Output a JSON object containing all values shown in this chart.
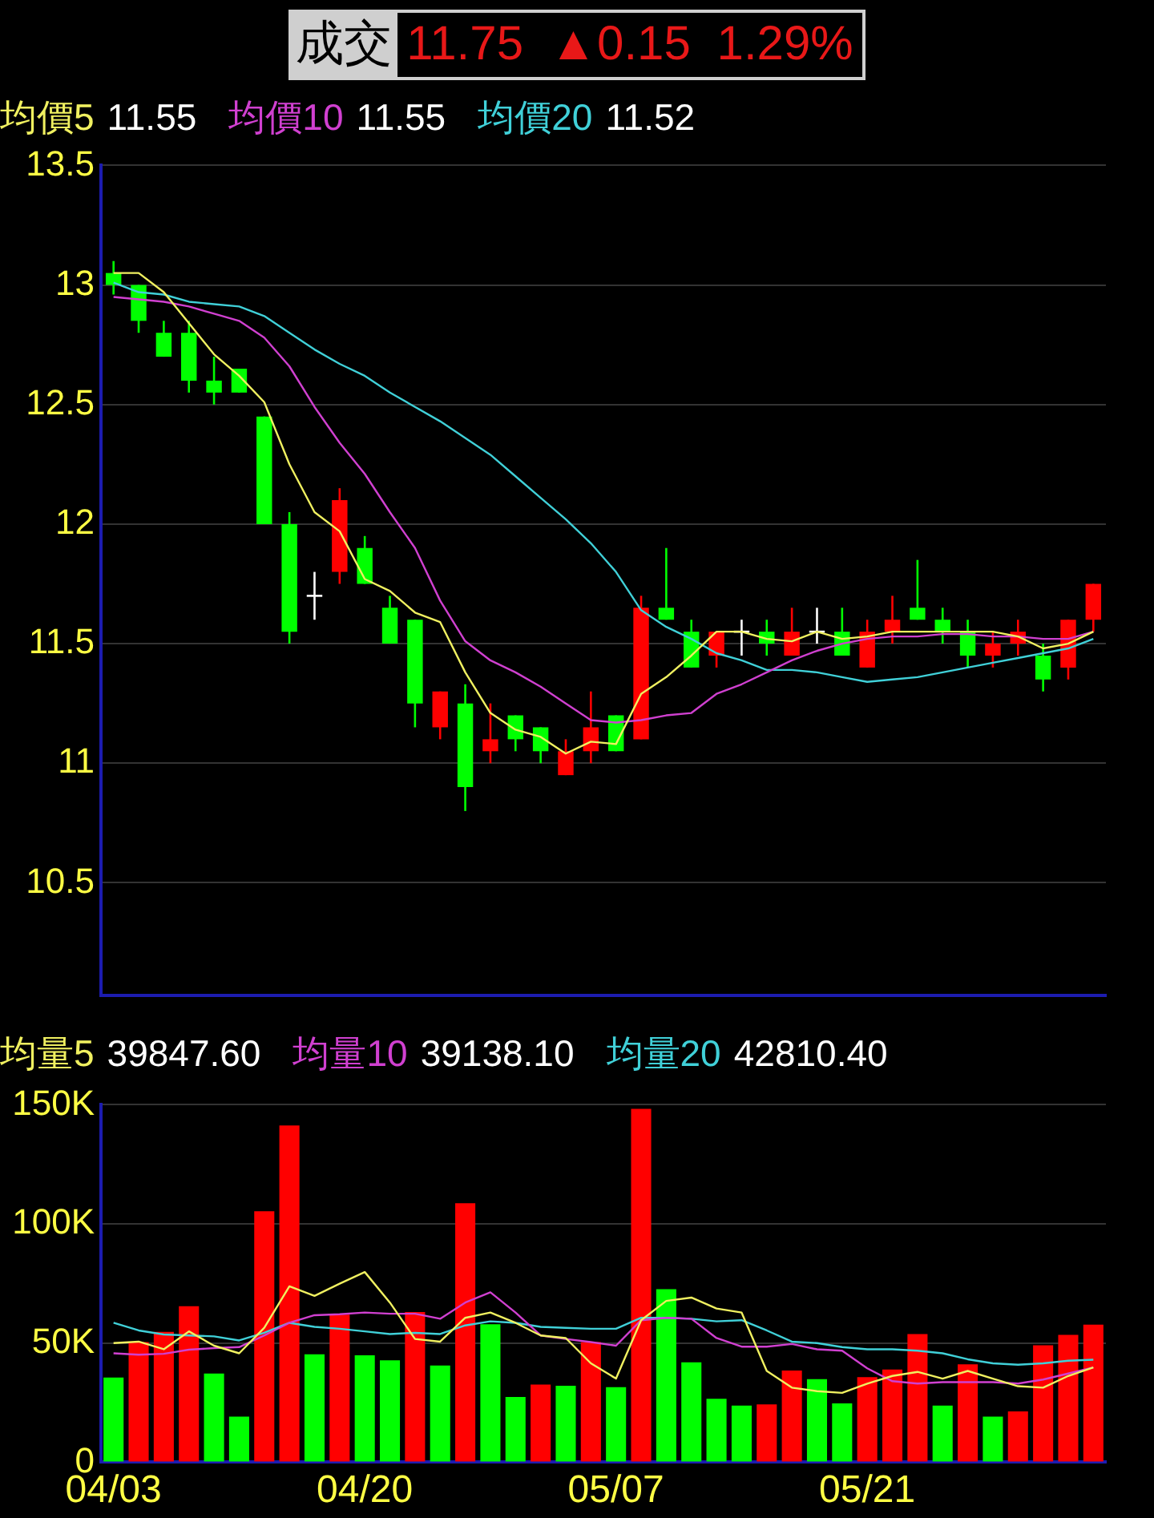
{
  "chart_data": [
    {
      "type": "candlestick",
      "title": "成交",
      "subtitle": "11.75 ▲0.15 1.29%",
      "ohlc": [
        [
          13.05,
          13.1,
          12.96,
          13.0
        ],
        [
          13.0,
          13.0,
          12.8,
          12.85
        ],
        [
          12.8,
          12.85,
          12.7,
          12.7
        ],
        [
          12.8,
          12.85,
          12.55,
          12.6
        ],
        [
          12.6,
          12.7,
          12.5,
          12.55
        ],
        [
          12.65,
          12.65,
          12.55,
          12.55
        ],
        [
          12.45,
          12.45,
          12.0,
          12.0
        ],
        [
          12.0,
          12.05,
          11.5,
          11.55
        ],
        [
          11.7,
          11.8,
          11.6,
          11.7
        ],
        [
          11.8,
          12.15,
          11.75,
          12.1
        ],
        [
          11.9,
          11.95,
          11.75,
          11.75
        ],
        [
          11.65,
          11.7,
          11.5,
          11.5
        ],
        [
          11.6,
          11.6,
          11.15,
          11.25
        ],
        [
          11.15,
          11.3,
          11.1,
          11.3
        ],
        [
          11.25,
          11.33,
          10.8,
          10.9
        ],
        [
          11.05,
          11.25,
          11.0,
          11.1
        ],
        [
          11.2,
          11.2,
          11.05,
          11.1
        ],
        [
          11.15,
          11.15,
          11.0,
          11.05
        ],
        [
          10.95,
          11.1,
          10.95,
          11.05
        ],
        [
          11.05,
          11.3,
          11.0,
          11.15
        ],
        [
          11.2,
          11.2,
          11.05,
          11.05
        ],
        [
          11.1,
          11.7,
          11.1,
          11.65
        ],
        [
          11.65,
          11.9,
          11.6,
          11.6
        ],
        [
          11.55,
          11.6,
          11.4,
          11.4
        ],
        [
          11.45,
          11.55,
          11.4,
          11.55
        ],
        [
          11.55,
          11.6,
          11.45,
          11.55
        ],
        [
          11.55,
          11.6,
          11.45,
          11.5
        ],
        [
          11.45,
          11.65,
          11.45,
          11.55
        ],
        [
          11.55,
          11.65,
          11.5,
          11.55
        ],
        [
          11.55,
          11.65,
          11.45,
          11.45
        ],
        [
          11.4,
          11.6,
          11.4,
          11.55
        ],
        [
          11.55,
          11.7,
          11.5,
          11.6
        ],
        [
          11.65,
          11.85,
          11.6,
          11.6
        ],
        [
          11.6,
          11.65,
          11.5,
          11.55
        ],
        [
          11.55,
          11.6,
          11.4,
          11.45
        ],
        [
          11.45,
          11.55,
          11.4,
          11.5
        ],
        [
          11.5,
          11.6,
          11.45,
          11.55
        ],
        [
          11.45,
          11.5,
          11.3,
          11.35
        ],
        [
          11.4,
          11.6,
          11.35,
          11.6
        ],
        [
          11.6,
          11.75,
          11.55,
          11.75
        ]
      ],
      "colors": [
        "#00ff00",
        "#00ff00",
        "#00ff00",
        "#00ff00",
        "#00ff00",
        "#00ff00",
        "#00ff00",
        "#00ff00",
        "#ffffff",
        "#ff0000",
        "#00ff00",
        "#00ff00",
        "#00ff00",
        "#ff0000",
        "#00ff00",
        "#ff0000",
        "#00ff00",
        "#00ff00",
        "#ff0000",
        "#ff0000",
        "#00ff00",
        "#ff0000",
        "#00ff00",
        "#00ff00",
        "#ff0000",
        "#ffffff",
        "#00ff00",
        "#ff0000",
        "#ffffff",
        "#00ff00",
        "#ff0000",
        "#ff0000",
        "#00ff00",
        "#00ff00",
        "#00ff00",
        "#ff0000",
        "#ff0000",
        "#00ff00",
        "#ff0000",
        "#ff0000"
      ],
      "series": [
        {
          "type": "line",
          "name": "均價5",
          "color": "#f0f060",
          "values": [
            13.05,
            13.05,
            12.97,
            12.84,
            12.71,
            12.62,
            12.51,
            12.25,
            12.05,
            11.97,
            11.77,
            11.72,
            11.63,
            11.59,
            11.38,
            11.21,
            11.14,
            11.11,
            11.04,
            11.09,
            11.08,
            11.29,
            11.36,
            11.45,
            11.55,
            11.55,
            11.52,
            11.51,
            11.55,
            11.52,
            11.53,
            11.55,
            11.55,
            11.55,
            11.55,
            11.55,
            11.53,
            11.48,
            11.5,
            11.55
          ]
        },
        {
          "type": "line",
          "name": "均價10",
          "color": "#d040d0",
          "values": [
            12.95,
            12.94,
            12.93,
            12.91,
            12.88,
            12.85,
            12.78,
            12.66,
            12.49,
            12.34,
            12.21,
            12.05,
            11.9,
            11.68,
            11.51,
            11.43,
            11.38,
            11.32,
            11.25,
            11.18,
            11.17,
            11.18,
            11.2,
            11.21,
            11.29,
            11.33,
            11.38,
            11.43,
            11.47,
            11.5,
            11.52,
            11.53,
            11.53,
            11.54,
            11.54,
            11.53,
            11.53,
            11.52,
            11.52,
            11.55
          ]
        },
        {
          "type": "line",
          "name": "均價20",
          "color": "#40d0d8",
          "values": [
            13.01,
            12.97,
            12.96,
            12.93,
            12.92,
            12.91,
            12.87,
            12.8,
            12.73,
            12.67,
            12.62,
            12.55,
            12.49,
            12.43,
            12.36,
            12.29,
            12.2,
            12.11,
            12.02,
            11.92,
            11.8,
            11.64,
            11.57,
            11.52,
            11.46,
            11.43,
            11.39,
            11.39,
            11.38,
            11.36,
            11.34,
            11.35,
            11.36,
            11.38,
            11.4,
            11.42,
            11.44,
            11.46,
            11.48,
            11.52
          ]
        }
      ],
      "annotations": [
        "11.55",
        "11.55",
        "11.52"
      ],
      "ylim": [
        10.03,
        13.5
      ],
      "yticks": [
        10.5,
        11,
        11.5,
        12,
        12.5,
        13,
        13.5
      ],
      "grid": "y",
      "legend": "top left",
      "tick_labels": "y"
    },
    {
      "type": "bar",
      "categories": [
        "04/03",
        null,
        null,
        null,
        null,
        null,
        null,
        null,
        null,
        null,
        "04/20",
        null,
        null,
        null,
        null,
        null,
        null,
        null,
        null,
        null,
        "05/07",
        null,
        null,
        null,
        null,
        null,
        null,
        null,
        null,
        null,
        "05/21",
        null,
        null,
        null,
        null,
        null,
        null,
        null,
        null,
        null
      ],
      "series": [
        {
          "colors": [
            "#00ff00",
            "#ff0000",
            "#ff0000",
            "#ff0000",
            "#00ff00",
            "#00ff00",
            "#ff0000",
            "#ff0000",
            "#00ff00",
            "#ff0000",
            "#00ff00",
            "#00ff00",
            "#ff0000",
            "#00ff00",
            "#ff0000",
            "#00ff00",
            "#00ff00",
            "#ff0000",
            "#00ff00",
            "#ff0000",
            "#00ff00",
            "#ff0000",
            "#00ff00",
            "#00ff00",
            "#00ff00",
            "#00ff00",
            "#ff0000",
            "#ff0000",
            "#00ff00",
            "#00ff00",
            "#ff0000",
            "#ff0000",
            "#ff0000",
            "#00ff00",
            "#ff0000",
            "#00ff00",
            "#ff0000",
            "#ff0000",
            "#ff0000",
            "#ff0000"
          ],
          "values": [
            35500,
            50400,
            54700,
            65500,
            37200,
            19100,
            105300,
            141300,
            45300,
            61900,
            44900,
            42800,
            63000,
            40600,
            108700,
            57900,
            27400,
            32600,
            32100,
            50400,
            31500,
            148300,
            72600,
            41900,
            26600,
            23800,
            24300,
            38500,
            34900,
            24700,
            35700,
            38900,
            53800,
            23800,
            41100,
            19100,
            21300,
            49100,
            53400,
            57700
          ]
        },
        {
          "type": "line",
          "name": "均量5",
          "color": "#f0f060",
          "values": [
            50000,
            50600,
            47400,
            54900,
            48900,
            45700,
            56400,
            73800,
            69800,
            74900,
            79800,
            67000,
            51700,
            50600,
            60600,
            62800,
            58500,
            53200,
            52100,
            41500,
            35100,
            59600,
            67700,
            69100,
            64500,
            62800,
            38300,
            31300,
            29800,
            29100,
            33000,
            36200,
            37900,
            35100,
            38300,
            35100,
            31900,
            31300,
            36200,
            39800
          ]
        },
        {
          "type": "line",
          "name": "均量10",
          "color": "#d040d0",
          "values": [
            45700,
            45100,
            45500,
            47200,
            47900,
            48300,
            53200,
            58500,
            61700,
            62100,
            62800,
            62300,
            62300,
            60200,
            67000,
            71300,
            62800,
            53200,
            51700,
            50400,
            48900,
            59600,
            60600,
            60200,
            52100,
            48500,
            48500,
            49600,
            47400,
            46800,
            39400,
            34000,
            33000,
            33600,
            33600,
            33600,
            33000,
            34700,
            37200,
            39800
          ]
        },
        {
          "type": "line",
          "name": "均量20",
          "color": "#40d0d8",
          "values": [
            58500,
            55300,
            53600,
            53200,
            52800,
            51100,
            54300,
            58500,
            56800,
            56000,
            54900,
            53800,
            54300,
            53800,
            57400,
            59100,
            58500,
            56800,
            56400,
            56000,
            56000,
            60600,
            60600,
            60200,
            59100,
            59600,
            55300,
            50600,
            50000,
            48300,
            47400,
            47400,
            46800,
            45700,
            43200,
            41500,
            40900,
            41500,
            42600,
            43000
          ]
        }
      ],
      "annotations": [
        "39847.60",
        "39138.10",
        "42810.40"
      ],
      "ylim": [
        0,
        150000
      ],
      "yticks": [
        0,
        {
          "value": 50000,
          "label": "50K"
        },
        {
          "value": 100000,
          "label": "100K"
        },
        {
          "value": 150000,
          "label": "150K"
        }
      ],
      "grid": "y",
      "legend": "top left"
    }
  ]
}
